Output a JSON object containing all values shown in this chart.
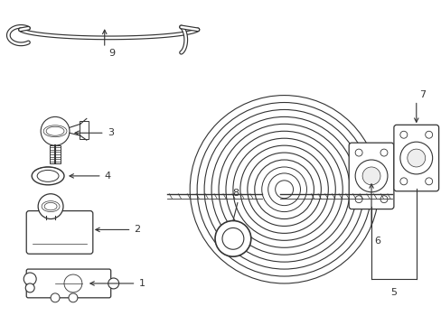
{
  "background_color": "#ffffff",
  "figsize": [
    4.89,
    3.6
  ],
  "dpi": 100,
  "line_color": "#333333"
}
